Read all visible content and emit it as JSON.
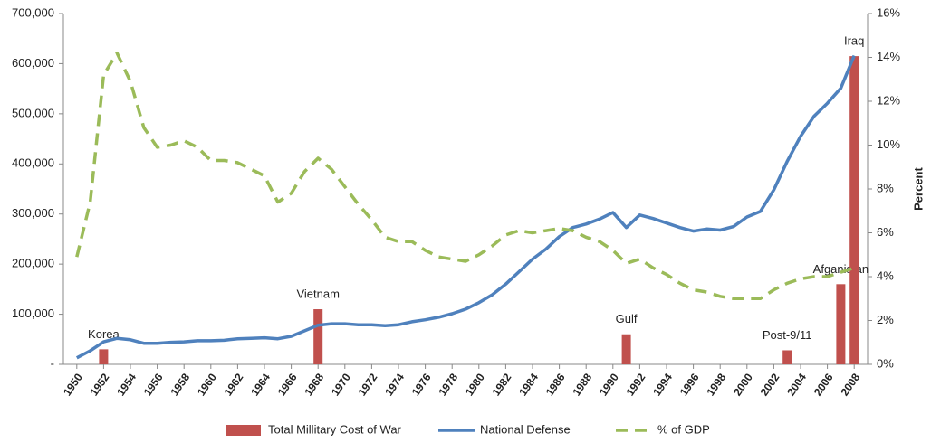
{
  "chart_data": {
    "type": "combo",
    "xlim": [
      1949,
      2009
    ],
    "xticks": [
      1950,
      1952,
      1954,
      1956,
      1958,
      1960,
      1962,
      1964,
      1966,
      1968,
      1970,
      1972,
      1974,
      1976,
      1978,
      1980,
      1982,
      1984,
      1986,
      1988,
      1990,
      1992,
      1994,
      1996,
      1998,
      2000,
      2002,
      2004,
      2006,
      2008
    ],
    "ylim": [
      0,
      700000
    ],
    "yticks": [
      {
        "value": 0,
        "label": "-"
      },
      {
        "value": 100000,
        "label": "100,000"
      },
      {
        "value": 200000,
        "label": "200,000"
      },
      {
        "value": 300000,
        "label": "300,000"
      },
      {
        "value": 400000,
        "label": "400,000"
      },
      {
        "value": 500000,
        "label": "500,000"
      },
      {
        "value": 600000,
        "label": "600,000"
      },
      {
        "value": 700000,
        "label": "700,000"
      }
    ],
    "y2lim": [
      0,
      16
    ],
    "y2ticks": [
      {
        "value": 0,
        "label": "0%"
      },
      {
        "value": 2,
        "label": "2%"
      },
      {
        "value": 4,
        "label": "4%"
      },
      {
        "value": 6,
        "label": "6%"
      },
      {
        "value": 8,
        "label": "8%"
      },
      {
        "value": 10,
        "label": "10%"
      },
      {
        "value": 12,
        "label": "12%"
      },
      {
        "value": 14,
        "label": "14%"
      },
      {
        "value": 16,
        "label": "16%"
      }
    ],
    "y2label": "Percent",
    "grid": false,
    "legend": "bottom",
    "x": [
      1950,
      1951,
      1952,
      1953,
      1954,
      1955,
      1956,
      1957,
      1958,
      1959,
      1960,
      1961,
      1962,
      1963,
      1964,
      1965,
      1966,
      1967,
      1968,
      1969,
      1970,
      1971,
      1972,
      1973,
      1974,
      1975,
      1976,
      1977,
      1978,
      1979,
      1980,
      1981,
      1982,
      1983,
      1984,
      1985,
      1986,
      1987,
      1988,
      1989,
      1990,
      1991,
      1992,
      1993,
      1994,
      1995,
      1996,
      1997,
      1998,
      1999,
      2000,
      2001,
      2002,
      2003,
      2004,
      2005,
      2006,
      2007,
      2008
    ],
    "series": [
      {
        "name": "Total Millitary Cost of War",
        "type": "bar",
        "color": "#c0504d",
        "x": [
          1952,
          1968,
          1991,
          2003,
          2007,
          2008
        ],
        "values": [
          30000,
          110000,
          60000,
          28000,
          160000,
          615000
        ],
        "labels": [
          "Korea",
          "Vietnam",
          "Gulf",
          "Post-9/11",
          "Afganistan",
          "Iraq"
        ]
      },
      {
        "name": "National Defense",
        "type": "line",
        "color": "#4f81bd",
        "values": [
          13000,
          27000,
          45000,
          52000,
          49000,
          42000,
          42000,
          44000,
          45000,
          47000,
          47000,
          48000,
          51000,
          52000,
          53000,
          51000,
          56000,
          67000,
          78000,
          81000,
          81000,
          79000,
          79000,
          77000,
          79000,
          85000,
          89000,
          94000,
          101000,
          110000,
          123000,
          139000,
          160000,
          185000,
          210000,
          230000,
          255000,
          273000,
          280000,
          290000,
          303000,
          273000,
          298000,
          291000,
          282000,
          273000,
          266000,
          270000,
          268000,
          275000,
          294000,
          305000,
          348000,
          405000,
          455000,
          495000,
          521000,
          551000,
          616000
        ]
      },
      {
        "name": "% of GDP",
        "type": "line",
        "dashed": true,
        "axis": "y2",
        "color": "#9bbb59",
        "values": [
          4.9,
          7.4,
          13.2,
          14.2,
          12.9,
          10.8,
          9.9,
          10.0,
          10.2,
          9.9,
          9.3,
          9.3,
          9.2,
          8.9,
          8.6,
          7.4,
          7.8,
          8.8,
          9.4,
          8.9,
          8.1,
          7.3,
          6.6,
          5.8,
          5.6,
          5.6,
          5.2,
          4.9,
          4.8,
          4.7,
          5.0,
          5.4,
          5.9,
          6.1,
          6.0,
          6.1,
          6.2,
          6.1,
          5.8,
          5.6,
          5.2,
          4.6,
          4.8,
          4.4,
          4.1,
          3.7,
          3.4,
          3.3,
          3.1,
          3.0,
          3.0,
          3.0,
          3.4,
          3.7,
          3.9,
          4.0,
          4.0,
          4.2,
          4.4
        ]
      }
    ]
  }
}
